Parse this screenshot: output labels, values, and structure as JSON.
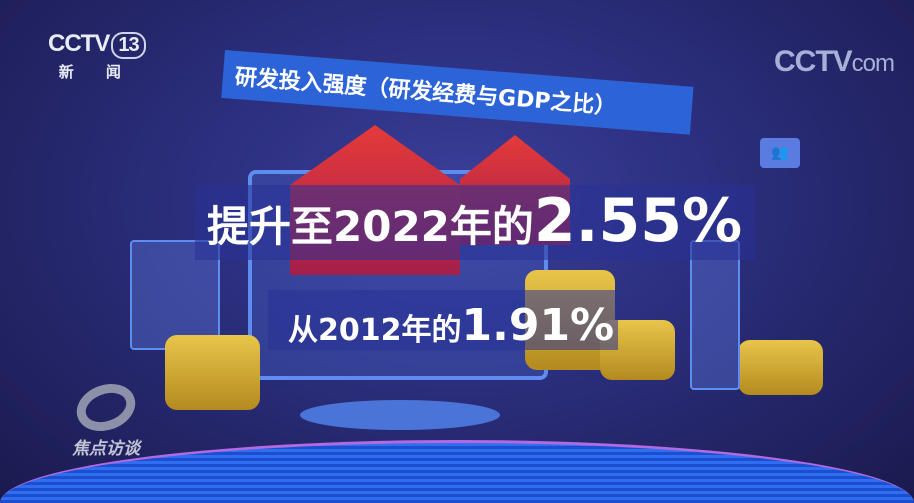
{
  "channel_logo": {
    "brand": "CCTV",
    "number": "13",
    "name": "新 闻"
  },
  "watermark": {
    "brand": "CCTV",
    "suffix": "com"
  },
  "title_banner": "研发投入强度（研发经费与GDP之比）",
  "headline": {
    "prefix": "提升至2022年的",
    "value": "2.55%"
  },
  "subline": {
    "prefix": "从2012年的",
    "value": "1.91%"
  },
  "program_logo": "焦点访谈",
  "indicators": {
    "rd_intensity_2012_percent": 1.91,
    "rd_intensity_2022_percent": 2.55
  },
  "colors": {
    "banner": "#2c63d6",
    "house": "#e53a3a",
    "coin": "#e8c54a"
  }
}
